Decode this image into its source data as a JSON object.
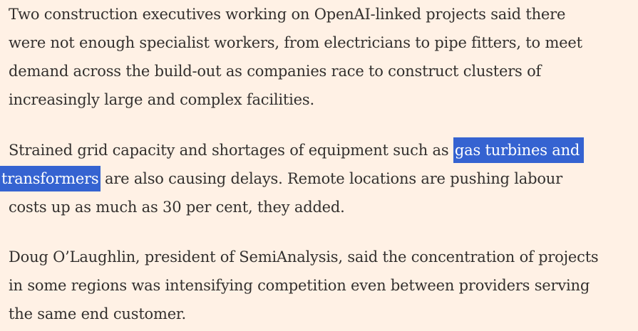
{
  "article": {
    "paragraph1": {
      "lines": [
        "Two construction executives working on OpenAI-linked projects said there",
        "were not enough specialist workers, from electricians to pipe fitters, to meet",
        "demand across the build-out as companies race to construct clusters of",
        "increasingly large and complex facilities."
      ]
    },
    "paragraph2": {
      "line1_before": "Strained grid capacity and shortages of equipment such as ",
      "line1_highlight": "gas turbines and",
      "line2_highlight": "transformers",
      "line2_after": " are also causing delays. Remote locations are pushing labour",
      "line3": "costs up as much as 30 per cent, they added."
    },
    "paragraph3": {
      "lines": [
        "Doug O’Laughlin, president of SemiAnalysis, said the concentration of projects",
        "in some regions was intensifying competition even between providers serving",
        "the same end customer."
      ]
    },
    "colors": {
      "background": "#fff1e5",
      "text": "#33302e",
      "selection_highlight": "#3563d1",
      "selection_text": "#ffffff"
    }
  }
}
